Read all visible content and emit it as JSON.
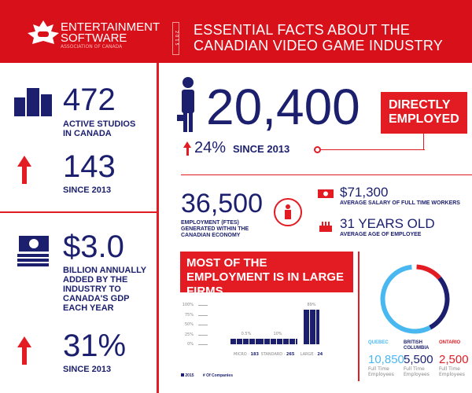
{
  "header": {
    "logo_line1": "ENTERTAINMENT",
    "logo_line2": "SOFTWARE",
    "logo_line3": "ASSOCIATION OF CANADA",
    "year": "2015",
    "title_line1": "ESSENTIAL FACTS ABOUT THE",
    "title_line2": "CANADIAN VIDEO GAME INDUSTRY"
  },
  "studios": {
    "value": "472",
    "label1": "ACTIVE STUDIOS",
    "label2": "IN CANADA",
    "growth": "143",
    "growth_label": "SINCE 2013"
  },
  "gdp": {
    "value": "$3.0",
    "label": [
      "BILLION ANNUALLY",
      "ADDED BY THE",
      "INDUSTRY TO",
      "CANADA'S GDP",
      "EACH YEAR"
    ],
    "growth": "31%",
    "growth_label": "SINCE 2013"
  },
  "employment": {
    "value": "20,400",
    "badge1": "DIRECTLY",
    "badge2": "EMPLOYED",
    "growth": "24%",
    "growth_label": "SINCE 2013"
  },
  "ftes": {
    "value": "36,500",
    "label": [
      "EMPLOYMENT (FTES)",
      "GENERATED WITHIN THE",
      "CANADIAN ECONOMY"
    ],
    "salary": "$71,300",
    "salary_label": "AVERAGE SALARY OF FULL TIME WORKERS",
    "age": "31 YEARS OLD",
    "age_label": "AVERAGE AGE OF EMPLOYEE"
  },
  "colors": {
    "red": "#e31b23",
    "navy": "#1b1f6e",
    "light_blue": "#4ab8f0"
  },
  "chart_data": [
    {
      "type": "bar",
      "title": "MOST OF THE EMPLOYMENT IS IN LARGE FIRMS",
      "ytick_labels": [
        "100%",
        "75%",
        "50%",
        "25%",
        "0%"
      ],
      "ylim": [
        0,
        100
      ],
      "categories": [
        "MICRO",
        "STANDARD",
        "LARGE"
      ],
      "companies": [
        "183",
        "265",
        "24"
      ],
      "values": [
        0.5,
        10,
        89
      ],
      "value_labels": [
        "0.5%",
        "10%",
        "89%"
      ],
      "legend": [
        "2015",
        "# Of Companies"
      ]
    },
    {
      "type": "pie",
      "regions": [
        {
          "name": "QUEBEC",
          "value": 10850,
          "label": "10,850",
          "color": "#4ab8f0"
        },
        {
          "name": "BRITISH COLUMBIA",
          "value": 5500,
          "label": "5,500",
          "color": "#1b1f6e"
        },
        {
          "name": "ONTARIO",
          "value": 2500,
          "label": "2,500",
          "color": "#e31b23"
        }
      ],
      "sublabel": "Full Time Employees"
    }
  ]
}
